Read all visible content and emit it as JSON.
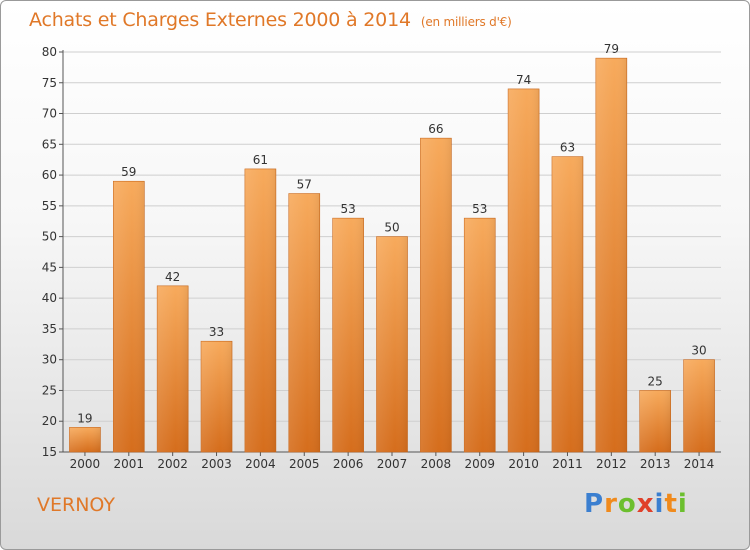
{
  "title": "Achats et Charges Externes 2000 à 2014",
  "subtitle": "(en milliers d'€)",
  "place": "VERNOY",
  "logo": {
    "letters": [
      "P",
      "r",
      "o",
      "x",
      "i",
      "t",
      "i"
    ],
    "colors": [
      "#3b7fd0",
      "#f08a1c",
      "#6cbf2e",
      "#e0402a",
      "#3b7fd0",
      "#f08a1c",
      "#6cbf2e"
    ]
  },
  "colors": {
    "accent": "#e07828",
    "bar_light": "#f6a85a",
    "bar_dark": "#d9701e"
  },
  "chart_data": {
    "type": "bar",
    "title": "Achats et Charges Externes 2000 à 2014",
    "subtitle": "(en milliers d'€)",
    "categories": [
      "2000",
      "2001",
      "2002",
      "2003",
      "2004",
      "2005",
      "2006",
      "2007",
      "2008",
      "2009",
      "2010",
      "2011",
      "2012",
      "2013",
      "2014"
    ],
    "values": [
      19,
      59,
      42,
      33,
      61,
      57,
      53,
      50,
      66,
      53,
      74,
      63,
      79,
      25,
      30
    ],
    "ylim": [
      15,
      80
    ],
    "yticks": [
      15,
      20,
      25,
      30,
      35,
      40,
      45,
      50,
      55,
      60,
      65,
      70,
      75,
      80
    ],
    "grid": true,
    "xlabel": "",
    "ylabel": ""
  }
}
